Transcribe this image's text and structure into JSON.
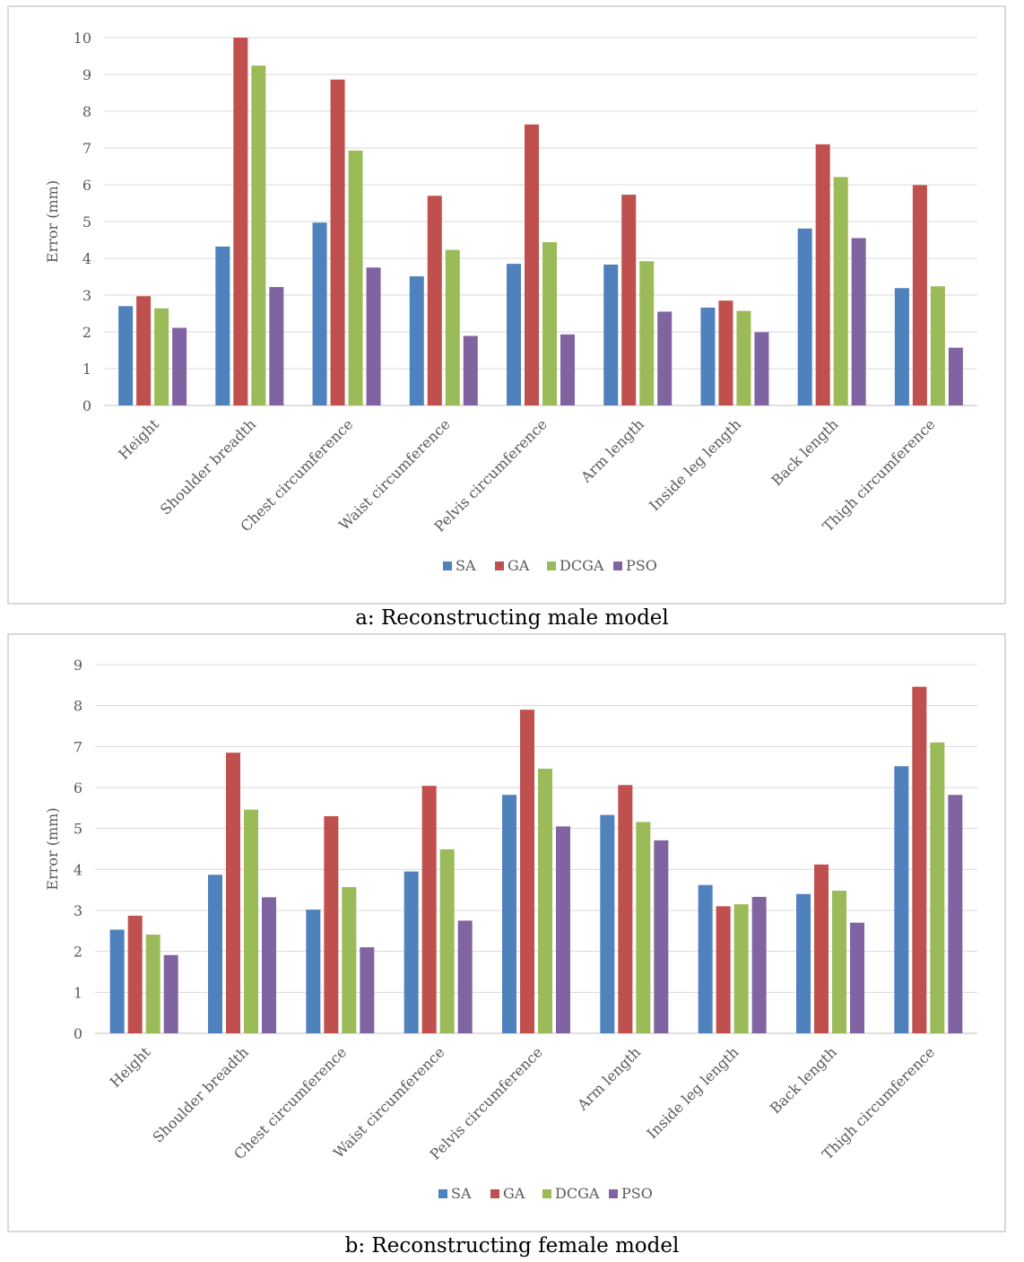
{
  "captions": {
    "a": "a: Reconstructing male model",
    "b": "b: Reconstructing female model"
  },
  "colors": {
    "SA": "#4f81bd",
    "GA": "#c0504d",
    "DCGA": "#9bbb59",
    "PSO": "#8064a2",
    "grid": "#d9d9d9"
  },
  "chart_data": [
    {
      "type": "bar",
      "title": "",
      "xlabel": "",
      "ylabel": "Error (mm)",
      "ylim": [
        0,
        10
      ],
      "yticks": [
        "0",
        "1",
        "2",
        "3",
        "4",
        "5",
        "6",
        "7",
        "8",
        "9",
        "10"
      ],
      "grid": true,
      "legend": "bottom",
      "categories": [
        "Height",
        "Shoulder breadth",
        "Chest circumference",
        "Waist circumference",
        "Pelvis circumference",
        "Arm length",
        "Inside leg length",
        "Back length",
        "Thigh circumference"
      ],
      "series": [
        {
          "name": "SA",
          "color": "#4f81bd",
          "values": [
            2.7,
            4.32,
            4.97,
            3.51,
            3.85,
            3.83,
            2.66,
            4.81,
            3.19
          ]
        },
        {
          "name": "GA",
          "color": "#c0504d",
          "values": [
            2.97,
            10.0,
            8.86,
            5.7,
            7.64,
            5.73,
            2.85,
            7.1,
            5.99
          ]
        },
        {
          "name": "DCGA",
          "color": "#9bbb59",
          "values": [
            2.64,
            9.24,
            6.93,
            4.23,
            4.44,
            3.92,
            2.57,
            6.21,
            3.24
          ]
        },
        {
          "name": "PSO",
          "color": "#8064a2",
          "values": [
            2.11,
            3.22,
            3.75,
            1.89,
            1.93,
            2.55,
            1.99,
            4.55,
            1.57
          ]
        }
      ]
    },
    {
      "type": "bar",
      "title": "",
      "xlabel": "",
      "ylabel": "Error (mm)",
      "ylim": [
        0,
        9
      ],
      "yticks": [
        "0",
        "1",
        "2",
        "3",
        "4",
        "5",
        "6",
        "7",
        "8",
        "9"
      ],
      "grid": true,
      "legend": "bottom",
      "categories": [
        "Height",
        "Shoulder breadth",
        "Chest circumference",
        "Waist circumference",
        "Pelvis circumference",
        "Arm length",
        "Inside leg length",
        "Back length",
        "Thigh circumference"
      ],
      "series": [
        {
          "name": "SA",
          "color": "#4f81bd",
          "values": [
            2.53,
            3.87,
            3.02,
            3.95,
            5.82,
            5.33,
            3.62,
            3.4,
            6.52
          ]
        },
        {
          "name": "GA",
          "color": "#c0504d",
          "values": [
            2.87,
            6.85,
            5.3,
            6.04,
            7.9,
            6.06,
            3.1,
            4.12,
            8.46
          ]
        },
        {
          "name": "DCGA",
          "color": "#9bbb59",
          "values": [
            2.41,
            5.46,
            3.57,
            4.49,
            6.46,
            5.16,
            3.15,
            3.48,
            7.1
          ]
        },
        {
          "name": "PSO",
          "color": "#8064a2",
          "values": [
            1.91,
            3.32,
            2.1,
            2.75,
            5.05,
            4.71,
            3.33,
            2.7,
            5.82
          ]
        }
      ]
    }
  ]
}
